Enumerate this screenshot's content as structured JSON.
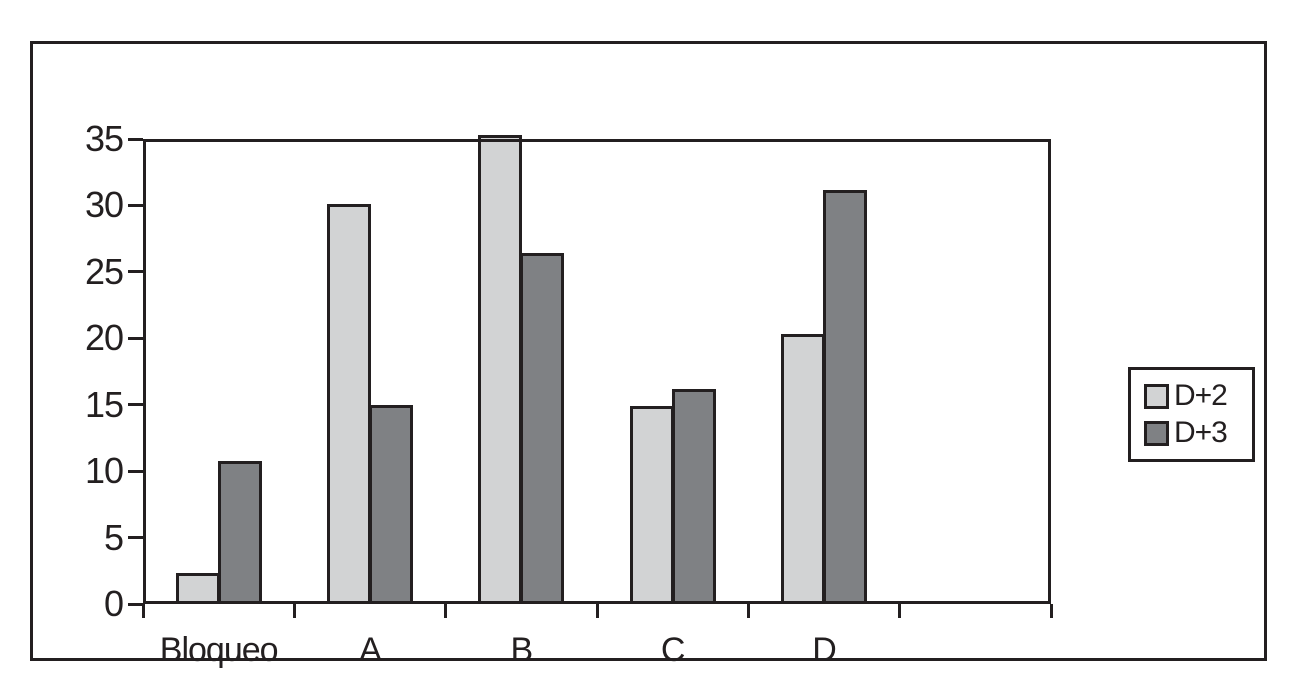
{
  "chart_data": {
    "type": "bar",
    "title": "",
    "xlabel": "",
    "ylabel": "",
    "categories": [
      "Bloqueo",
      "A",
      "B",
      "C",
      "D"
    ],
    "series": [
      {
        "name": "D+2",
        "color": "#d2d3d4",
        "values": [
          2.3,
          30.1,
          35.3,
          14.9,
          20.3
        ]
      },
      {
        "name": "D+3",
        "color": "#7f8184",
        "values": [
          10.8,
          15.0,
          26.4,
          16.2,
          31.2
        ]
      }
    ],
    "ylim": [
      0,
      35
    ],
    "yticks": [
      0,
      5,
      10,
      15,
      20,
      25,
      30,
      35
    ],
    "grid": false,
    "legend_position": "right-outside",
    "layout": {
      "x_slot_count": 6,
      "empty_last_slot": true,
      "bar_outline_color": "#231f20",
      "axis_color": "#231f20",
      "background_color": "#ffffff"
    }
  },
  "legend": {
    "items": [
      {
        "label": "D+2",
        "color": "#d2d3d4"
      },
      {
        "label": "D+3",
        "color": "#7f8184"
      }
    ]
  }
}
